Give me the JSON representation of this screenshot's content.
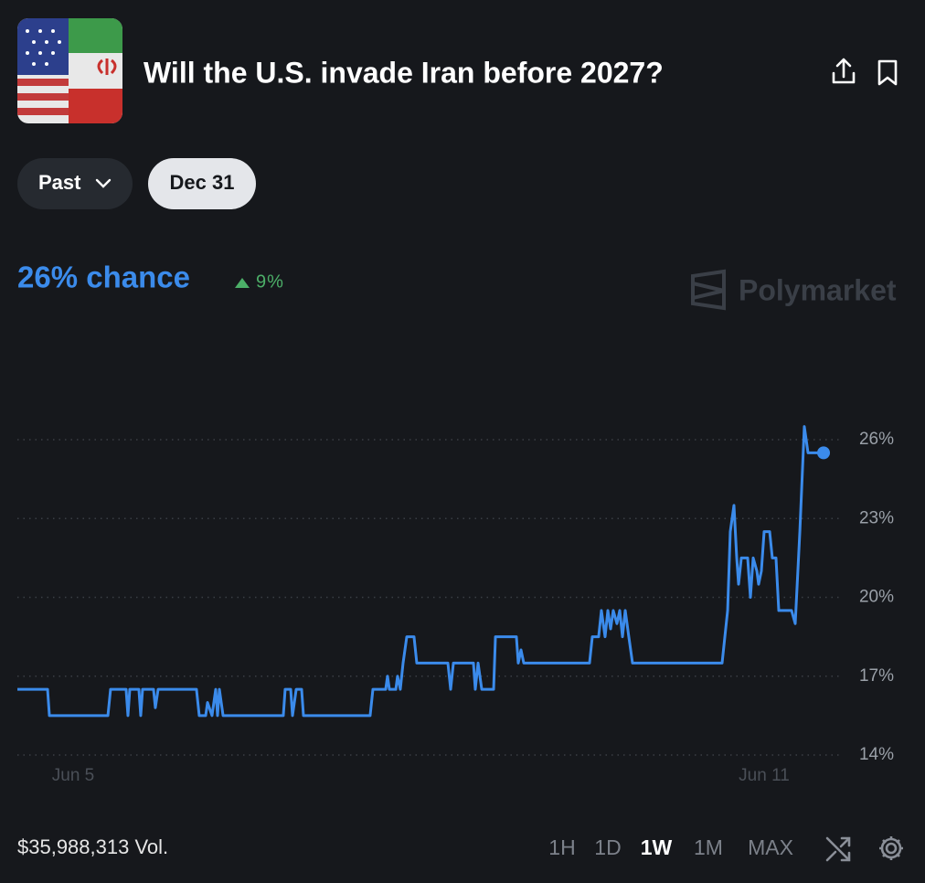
{
  "header": {
    "title": "Will the U.S. invade Iran before 2027?"
  },
  "filters": [
    "Past",
    "Dec 31"
  ],
  "summary": {
    "chance": "26% chance",
    "change": "9%"
  },
  "brand": "Polymarket",
  "chart_data": {
    "type": "line",
    "x": [
      4.516,
      4.778,
      4.794,
      5.302,
      5.325,
      5.46,
      5.476,
      5.492,
      5.571,
      5.587,
      5.603,
      5.698,
      5.714,
      5.738,
      6.071,
      6.095,
      6.151,
      6.167,
      6.206,
      6.238,
      6.254,
      6.27,
      6.302,
      6.825,
      6.841,
      6.889,
      6.905,
      6.937,
      6.984,
      7.0,
      7.579,
      7.603,
      7.714,
      7.73,
      7.746,
      7.802,
      7.817,
      7.841,
      7.865,
      7.897,
      7.96,
      7.984,
      8.254,
      8.278,
      8.302,
      8.476,
      8.492,
      8.516,
      8.548,
      8.651,
      8.667,
      8.849,
      8.865,
      8.889,
      8.913,
      9.484,
      9.508,
      9.563,
      9.587,
      9.619,
      9.643,
      9.667,
      9.69,
      9.722,
      9.746,
      9.77,
      9.794,
      9.825,
      9.857,
      10.635,
      10.659,
      10.683,
      10.706,
      10.738,
      10.762,
      10.778,
      10.802,
      10.857,
      10.881,
      10.905,
      10.937,
      10.952,
      10.976,
      11.0,
      11.048,
      11.071,
      11.103,
      11.127,
      11.238,
      11.27,
      11.31,
      11.349,
      11.381,
      11.452,
      11.516
    ],
    "series": [
      {
        "color": "#3b8beb",
        "values": [
          16.5,
          16.5,
          15.5,
          15.5,
          16.5,
          16.5,
          15.5,
          16.5,
          16.5,
          15.5,
          16.5,
          16.5,
          15.8,
          16.5,
          16.5,
          15.5,
          15.5,
          16.0,
          15.5,
          16.5,
          15.5,
          16.5,
          15.5,
          15.5,
          16.5,
          16.5,
          15.5,
          16.5,
          16.5,
          15.5,
          15.5,
          16.5,
          16.5,
          17.0,
          16.5,
          16.5,
          17.0,
          16.5,
          17.5,
          18.5,
          18.5,
          17.5,
          17.5,
          16.5,
          17.5,
          17.5,
          16.5,
          17.5,
          16.5,
          16.5,
          18.5,
          18.5,
          17.5,
          18.0,
          17.5,
          17.5,
          18.5,
          18.5,
          19.5,
          18.5,
          19.5,
          18.8,
          19.5,
          19.0,
          19.5,
          18.5,
          19.5,
          18.5,
          17.5,
          17.5,
          18.5,
          19.5,
          22.5,
          23.5,
          21.5,
          20.5,
          21.5,
          21.5,
          20.0,
          21.5,
          21.0,
          20.5,
          21.0,
          22.5,
          22.5,
          21.5,
          21.5,
          19.5,
          19.5,
          19.0,
          22.5,
          26.5,
          25.5,
          25.5,
          25.5
        ]
      }
    ],
    "xlim": [
      4.5,
      11.6
    ],
    "xticks": [
      {
        "value": 5,
        "label": "Jun 5"
      },
      {
        "value": 11,
        "label": "Jun 11"
      }
    ],
    "ylim": [
      14,
      27.5
    ],
    "yticks": [
      {
        "value": 14,
        "label": "14%"
      },
      {
        "value": 17,
        "label": "17%"
      },
      {
        "value": 20,
        "label": "20%"
      },
      {
        "value": 23,
        "label": "23%"
      },
      {
        "value": 26,
        "label": "26%"
      }
    ],
    "grid": true
  },
  "footer": {
    "volume": "$35,988,313 Vol.",
    "timeframes": [
      "1H",
      "1D",
      "1W",
      "1M",
      "MAX"
    ],
    "active_timeframe": "1W"
  }
}
